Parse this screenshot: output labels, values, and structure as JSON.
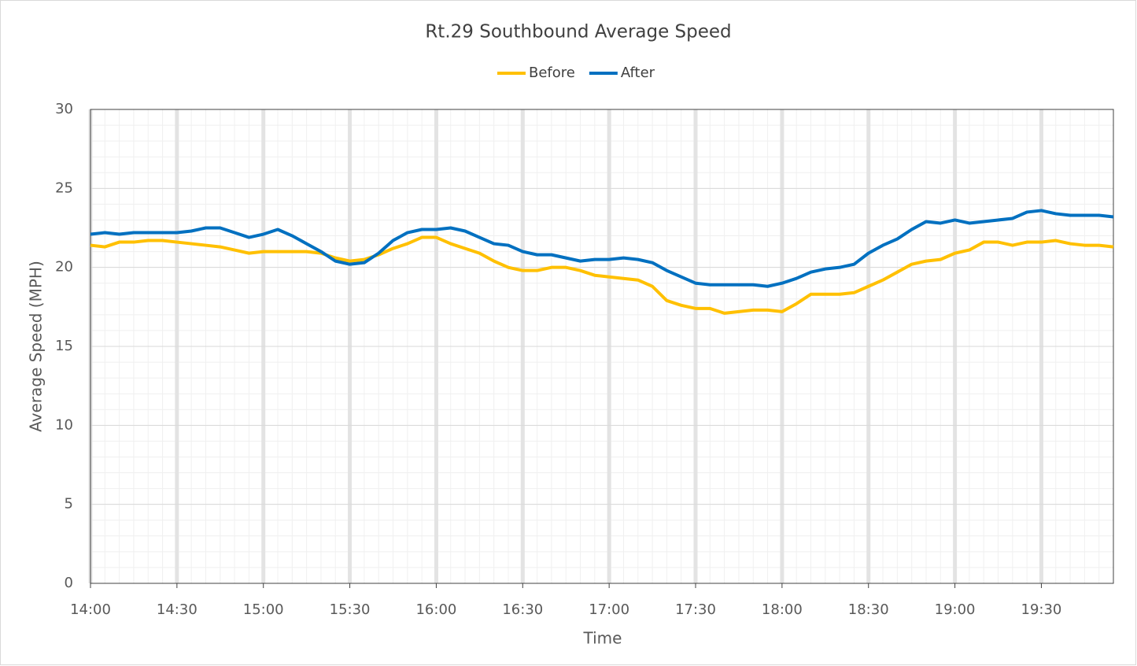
{
  "chart_data": {
    "type": "line",
    "title": "Rt.29 Southbound Average Speed",
    "x_label": "Time",
    "y_label": "Average Speed (MPH)",
    "categories": [
      "14:00",
      null,
      null,
      null,
      null,
      null,
      "14:30",
      null,
      null,
      null,
      null,
      null,
      "15:00",
      null,
      null,
      null,
      null,
      null,
      "15:30",
      null,
      null,
      null,
      null,
      null,
      "16:00",
      null,
      null,
      null,
      null,
      null,
      "16:30",
      null,
      null,
      null,
      null,
      null,
      "17:00",
      null,
      null,
      null,
      null,
      null,
      "17:30",
      null,
      null,
      null,
      null,
      null,
      "18:00",
      null,
      null,
      null,
      null,
      null,
      "18:30",
      null,
      null,
      null,
      null,
      null,
      "19:00",
      null,
      null,
      null,
      null,
      null,
      "19:30",
      null,
      null,
      null,
      null,
      null
    ],
    "series": [
      {
        "name": "Before",
        "color": "#ffc000",
        "values": [
          21.4,
          21.3,
          21.6,
          21.6,
          21.7,
          21.7,
          21.6,
          21.5,
          21.4,
          21.3,
          21.1,
          20.9,
          21.0,
          21.0,
          21.0,
          21.0,
          20.9,
          20.6,
          20.4,
          20.5,
          20.8,
          21.2,
          21.5,
          21.9,
          21.9,
          21.5,
          21.2,
          20.9,
          20.4,
          20.0,
          19.8,
          19.8,
          20.0,
          20.0,
          19.8,
          19.5,
          19.4,
          19.3,
          19.2,
          18.8,
          17.9,
          17.6,
          17.4,
          17.4,
          17.1,
          17.2,
          17.3,
          17.3,
          17.2,
          17.7,
          18.3,
          18.3,
          18.3,
          18.4,
          18.8,
          19.2,
          19.7,
          20.2,
          20.4,
          20.5,
          20.9,
          21.1,
          21.6,
          21.6,
          21.4,
          21.6,
          21.6,
          21.7,
          21.5,
          21.4,
          21.4,
          21.3
        ]
      },
      {
        "name": "After",
        "color": "#0070c0",
        "values": [
          22.1,
          22.2,
          22.1,
          22.2,
          22.2,
          22.2,
          22.2,
          22.3,
          22.5,
          22.5,
          22.2,
          21.9,
          22.1,
          22.4,
          22.0,
          21.5,
          21.0,
          20.4,
          20.2,
          20.3,
          20.9,
          21.7,
          22.2,
          22.4,
          22.4,
          22.5,
          22.3,
          21.9,
          21.5,
          21.4,
          21.0,
          20.8,
          20.8,
          20.6,
          20.4,
          20.5,
          20.5,
          20.6,
          20.5,
          20.3,
          19.8,
          19.4,
          19.0,
          18.9,
          18.9,
          18.9,
          18.9,
          18.8,
          19.0,
          19.3,
          19.7,
          19.9,
          20.0,
          20.2,
          20.9,
          21.4,
          21.8,
          22.4,
          22.9,
          22.8,
          23.0,
          22.8,
          22.9,
          23.0,
          23.1,
          23.5,
          23.6,
          23.4,
          23.3,
          23.3,
          23.3,
          23.2
        ]
      }
    ],
    "ylim": [
      0,
      30
    ],
    "yticks": [
      0,
      5,
      10,
      15,
      20,
      25,
      30
    ],
    "grid": true,
    "legend": "top"
  }
}
